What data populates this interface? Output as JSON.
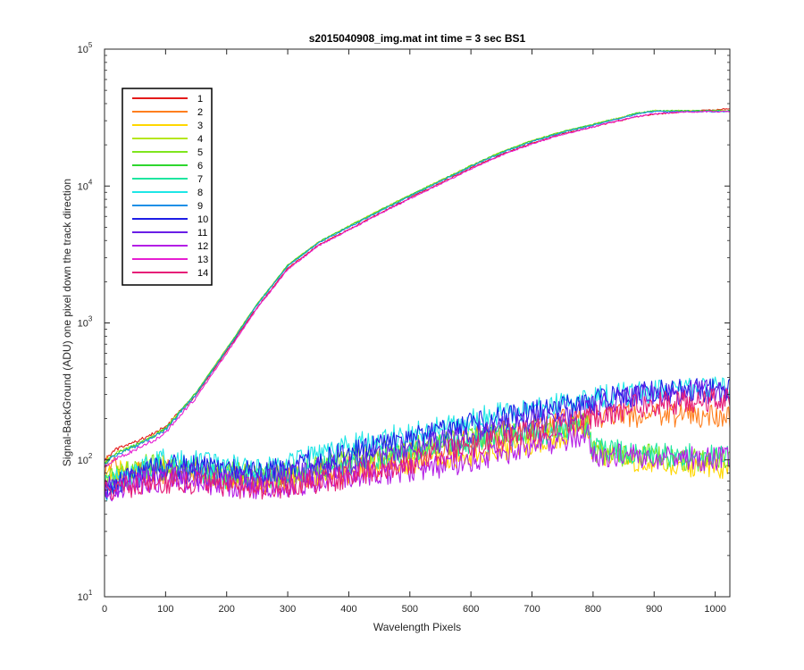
{
  "chart_data": {
    "type": "line",
    "title": "s2015040908_img.mat int time = 3 sec   BS1",
    "xlabel": "Wavelength Pixels",
    "ylabel": "Signal-BackGround (ADU) one pixel down the track direction",
    "xlim": [
      0,
      1024
    ],
    "ylim": [
      10,
      100000
    ],
    "yscale": "log",
    "x_ticks": [
      "0",
      "100",
      "200",
      "300",
      "400",
      "500",
      "600",
      "700",
      "800",
      "900",
      "1000"
    ],
    "y_tick_exponents": [
      "1",
      "2",
      "3",
      "4",
      "5"
    ],
    "y_tick_base": "10",
    "legend_position": "top-left",
    "grid": false,
    "x_sample": [
      0,
      10,
      20,
      50,
      80,
      100,
      150,
      200,
      250,
      300,
      350,
      400,
      450,
      500,
      550,
      600,
      650,
      700,
      750,
      790,
      800,
      820,
      850,
      870,
      900,
      950,
      1000,
      1024
    ],
    "series": [
      {
        "name": "1",
        "color": "#e41a1a",
        "values": [
          100,
          110,
          120,
          135,
          155,
          175,
          300,
          620,
          1300,
          2500,
          3700,
          4800,
          6300,
          8200,
          10500,
          13500,
          17000,
          20500,
          24000,
          26500,
          27000,
          28500,
          30500,
          32000,
          33500,
          35000,
          36000,
          37000
        ]
      },
      {
        "name": "2",
        "color": "#ff7f1e",
        "values": [
          90,
          88,
          85,
          82,
          80,
          82,
          78,
          75,
          70,
          72,
          80,
          90,
          100,
          110,
          125,
          140,
          160,
          175,
          190,
          200,
          205,
          210,
          212,
          212,
          210,
          210,
          208,
          208
        ]
      },
      {
        "name": "3",
        "color": "#ffd700",
        "values": [
          75,
          78,
          80,
          82,
          85,
          88,
          80,
          75,
          70,
          72,
          75,
          82,
          90,
          95,
          100,
          110,
          120,
          135,
          150,
          170,
          110,
          108,
          105,
          100,
          95,
          92,
          90,
          88
        ]
      },
      {
        "name": "4",
        "color": "#b6e61e",
        "values": [
          95,
          105,
          112,
          128,
          150,
          170,
          310,
          650,
          1380,
          2650,
          3900,
          5100,
          6650,
          8600,
          11000,
          14100,
          17800,
          21500,
          25000,
          27500,
          28200,
          29800,
          32000,
          34000,
          35500,
          35500,
          35500,
          35500
        ]
      },
      {
        "name": "5",
        "color": "#7fe61e",
        "values": [
          70,
          72,
          75,
          85,
          95,
          92,
          85,
          80,
          75,
          80,
          90,
          100,
          110,
          120,
          130,
          140,
          150,
          160,
          170,
          180,
          115,
          112,
          110,
          108,
          105,
          102,
          100,
          100
        ]
      },
      {
        "name": "6",
        "color": "#2ed62e",
        "values": [
          94,
          104,
          111,
          127,
          149,
          169,
          308,
          645,
          1370,
          2630,
          3880,
          5070,
          6610,
          8550,
          10950,
          14050,
          17700,
          21400,
          24900,
          27400,
          28100,
          29700,
          31900,
          33900,
          35400,
          35400,
          35400,
          35400
        ]
      },
      {
        "name": "7",
        "color": "#1ee6a0",
        "values": [
          65,
          68,
          70,
          78,
          88,
          85,
          80,
          75,
          72,
          75,
          85,
          95,
          105,
          115,
          125,
          135,
          145,
          155,
          165,
          175,
          120,
          118,
          115,
          112,
          110,
          108,
          105,
          105
        ]
      },
      {
        "name": "8",
        "color": "#1ee6e6",
        "values": [
          60,
          65,
          70,
          80,
          95,
          100,
          95,
          90,
          85,
          95,
          110,
          125,
          140,
          155,
          175,
          195,
          215,
          235,
          255,
          270,
          280,
          290,
          300,
          305,
          310,
          320,
          330,
          335
        ]
      },
      {
        "name": "9",
        "color": "#1e90e6",
        "values": [
          92,
          102,
          109,
          125,
          147,
          166,
          303,
          635,
          1350,
          2590,
          3820,
          4990,
          6510,
          8420,
          10800,
          13850,
          17450,
          21100,
          24600,
          27100,
          27800,
          29400,
          31600,
          33400,
          35000,
          35000,
          35000,
          35000
        ]
      },
      {
        "name": "10",
        "color": "#1e1ee6",
        "values": [
          55,
          60,
          65,
          75,
          85,
          90,
          88,
          85,
          80,
          88,
          100,
          115,
          130,
          145,
          160,
          180,
          200,
          220,
          240,
          255,
          265,
          275,
          290,
          300,
          310,
          318,
          325,
          330
        ]
      },
      {
        "name": "11",
        "color": "#6a1ee6",
        "values": [
          60,
          62,
          65,
          72,
          80,
          82,
          78,
          72,
          70,
          75,
          85,
          95,
          108,
          120,
          135,
          150,
          170,
          190,
          210,
          230,
          245,
          260,
          280,
          290,
          300,
          310,
          318,
          320
        ]
      },
      {
        "name": "12",
        "color": "#b41ee6",
        "values": [
          60,
          60,
          62,
          65,
          70,
          72,
          70,
          65,
          62,
          65,
          70,
          75,
          80,
          85,
          90,
          100,
          112,
          125,
          140,
          160,
          110,
          108,
          106,
          105,
          104,
          103,
          102,
          100
        ]
      },
      {
        "name": "13",
        "color": "#e61ed2",
        "values": [
          88,
          96,
          103,
          118,
          138,
          158,
          285,
          600,
          1280,
          2460,
          3650,
          4770,
          6230,
          8080,
          10350,
          13300,
          16800,
          20300,
          23800,
          26300,
          27000,
          28600,
          30500,
          32100,
          33700,
          34800,
          35000,
          35000
        ]
      },
      {
        "name": "14",
        "color": "#e61e78",
        "values": [
          60,
          62,
          63,
          65,
          68,
          70,
          68,
          65,
          62,
          65,
          70,
          75,
          85,
          95,
          110,
          125,
          140,
          160,
          180,
          200,
          210,
          220,
          235,
          245,
          255,
          265,
          275,
          280
        ]
      }
    ]
  }
}
